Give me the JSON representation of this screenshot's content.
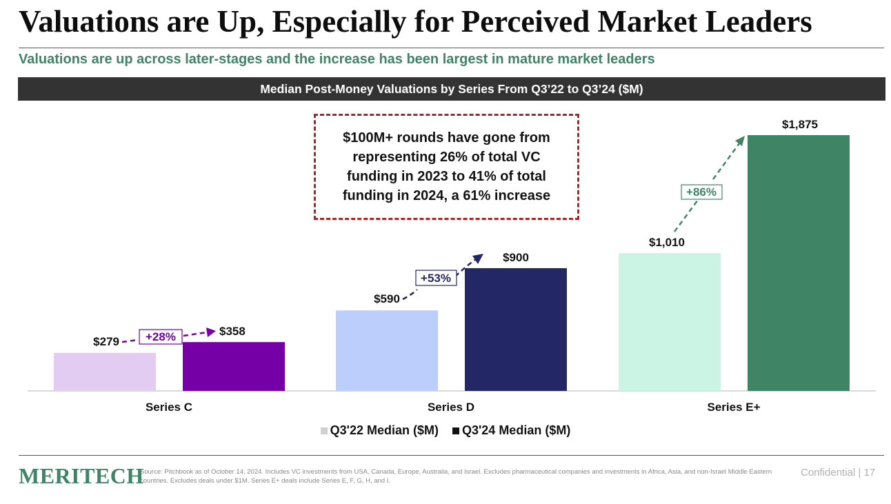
{
  "slide": {
    "title": "Valuations are Up, Especially for Perceived Market Leaders",
    "subtitle": "Valuations are up across later-stages and the increase has been largest in mature market leaders",
    "banner": "Median Post-Money Valuations by Series From Q3’22 to Q3’24 ($M)",
    "callout": "$100M+ rounds have gone from representing 26% of total VC funding in 2023 to 41% of total funding in 2024, a 61% increase",
    "brand": "MERITECH",
    "source": "Source: Pitchbook as of October 14, 2024. Includes VC investments from USA, Canada, Europe, Australia, and Israel. Excludes pharmaceutical companies and investments in Africa, Asia, and non-Israel Middle Eastern countries. Excludes deals under $1M. Series E+ deals include Series E, F, G, H, and I.",
    "confidential": "Confidential | 17"
  },
  "legend": {
    "q22": "Q3'22 Median ($M)",
    "q24": "Q3'24 Median ($M)",
    "q22_color": "#d0d0d0",
    "q24_color": "#111111"
  },
  "chart_data": {
    "type": "bar",
    "categories": [
      "Series C",
      "Series D",
      "Series E+"
    ],
    "series": [
      {
        "name": "Q3'22 Median ($M)",
        "values": [
          279,
          590,
          1010
        ]
      },
      {
        "name": "Q3'24 Median ($M)",
        "values": [
          358,
          900,
          1875
        ]
      }
    ],
    "value_labels": {
      "q22": [
        "$279",
        "$590",
        "$1,010"
      ],
      "q24": [
        "$358",
        "$900",
        "$1,875"
      ]
    },
    "changes": [
      "+28%",
      "+53%",
      "+86%"
    ],
    "colors": {
      "q22": [
        "#e2ccf2",
        "#bccefc",
        "#cbf4e4"
      ],
      "q24": [
        "#7400a6",
        "#232766",
        "#408466"
      ],
      "arrows": [
        "#7400a6",
        "#232766",
        "#408466"
      ]
    },
    "ylim": [
      0,
      2000
    ],
    "grid": false,
    "legend_position": "bottom"
  }
}
